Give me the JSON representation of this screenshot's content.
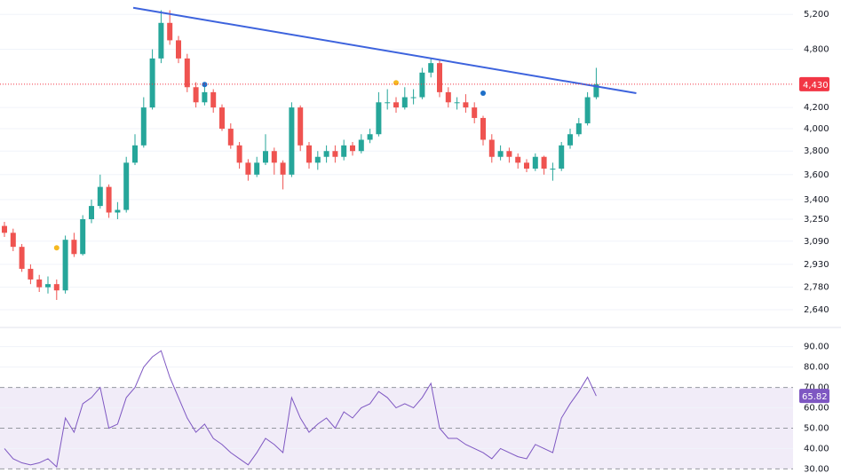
{
  "chart_data": [
    {
      "type": "candlestick",
      "log_scale": true,
      "grid": true,
      "up_color": "#26a69a",
      "down_color": "#ef5350",
      "open": [
        3200,
        3150,
        3050,
        2900,
        2830,
        2780,
        2800,
        2760,
        3100,
        3000,
        3250,
        3350,
        3500,
        3300,
        3320,
        3700,
        3850,
        4200,
        4700,
        5100,
        4900,
        4700,
        4400,
        4250,
        4350,
        4200,
        4000,
        3850,
        3700,
        3600,
        3700,
        3800,
        3700,
        3600,
        4200,
        3850,
        3700,
        3750,
        3800,
        3750,
        3850,
        3800,
        3900,
        3950,
        4250,
        4250,
        4200,
        4300,
        4300,
        4550,
        4650,
        4350,
        4250,
        4250,
        4200,
        4100,
        3900,
        3750,
        3800,
        3750,
        3700,
        3650,
        3750,
        3650,
        3650,
        3850,
        3950,
        4050,
        4300
      ],
      "high": [
        3230,
        3180,
        3070,
        2930,
        2860,
        2850,
        2830,
        3130,
        3150,
        3280,
        3400,
        3600,
        3520,
        3380,
        3750,
        3950,
        4300,
        4800,
        5250,
        5250,
        4950,
        4750,
        4450,
        4450,
        4380,
        4230,
        4050,
        3880,
        3730,
        3750,
        3950,
        3830,
        3720,
        4250,
        4220,
        3880,
        3800,
        3850,
        3850,
        3900,
        3880,
        3950,
        4000,
        4350,
        4380,
        4300,
        4400,
        4380,
        4600,
        4700,
        4680,
        4400,
        4300,
        4330,
        4250,
        4120,
        3950,
        3850,
        3830,
        3780,
        3730,
        3780,
        3760,
        3700,
        3880,
        4000,
        4100,
        4350,
        4600
      ],
      "low": [
        3120,
        3020,
        2880,
        2800,
        2750,
        2740,
        2700,
        2740,
        2980,
        2990,
        3220,
        3330,
        3260,
        3250,
        3300,
        3680,
        3830,
        4180,
        4650,
        4850,
        4650,
        4350,
        4200,
        4220,
        4150,
        3980,
        3820,
        3650,
        3550,
        3580,
        3680,
        3600,
        3480,
        3580,
        3800,
        3650,
        3640,
        3700,
        3700,
        3720,
        3760,
        3780,
        3870,
        3930,
        4180,
        4150,
        4180,
        4230,
        4280,
        4500,
        4300,
        4200,
        4180,
        4150,
        4050,
        3850,
        3700,
        3720,
        3700,
        3650,
        3620,
        3630,
        3600,
        3550,
        3630,
        3820,
        3930,
        4030,
        4280
      ],
      "close": [
        3150,
        3050,
        2900,
        2830,
        2780,
        2800,
        2760,
        3100,
        3000,
        3250,
        3350,
        3500,
        3300,
        3320,
        3700,
        3850,
        4200,
        4700,
        5100,
        4900,
        4700,
        4400,
        4250,
        4350,
        4200,
        4000,
        3850,
        3700,
        3600,
        3700,
        3800,
        3700,
        3600,
        4200,
        3850,
        3700,
        3750,
        3800,
        3750,
        3850,
        3800,
        3900,
        3950,
        4250,
        4250,
        4200,
        4300,
        4300,
        4550,
        4650,
        4350,
        4250,
        4250,
        4200,
        4100,
        3900,
        3750,
        3800,
        3750,
        3700,
        3650,
        3750,
        3650,
        3650,
        3850,
        3950,
        4050,
        4300,
        4430
      ],
      "ylim": [
        2540,
        5375
      ],
      "yticks": [
        {
          "value": 2640,
          "label": "2,640"
        },
        {
          "value": 2780,
          "label": "2,780"
        },
        {
          "value": 2930,
          "label": "2,930"
        },
        {
          "value": 3090,
          "label": "3,090"
        },
        {
          "value": 3250,
          "label": "3,250"
        },
        {
          "value": 3400,
          "label": "3,400"
        },
        {
          "value": 3600,
          "label": "3,600"
        },
        {
          "value": 3800,
          "label": "3,800"
        },
        {
          "value": 4000,
          "label": "4,000"
        },
        {
          "value": 4200,
          "label": "4,200"
        },
        {
          "value": 4800,
          "label": "4,800"
        },
        {
          "value": 5200,
          "label": "5,200"
        }
      ],
      "last_price": {
        "value": 4430,
        "label": "4,430",
        "color": "#f23645"
      },
      "markers": [
        {
          "index": 6,
          "value": 3043,
          "color": "#f5b921"
        },
        {
          "index": 23,
          "value": 4427,
          "color": "#1e6fc8"
        },
        {
          "index": 45,
          "value": 4445,
          "color": "#f5b921"
        },
        {
          "index": 55,
          "value": 4340,
          "color": "#1e6fc8"
        }
      ],
      "trendline": {
        "x": [
          14.8,
          72.6
        ],
        "y": [
          5280,
          4340
        ],
        "color": "#3d63dd"
      }
    },
    {
      "type": "line",
      "color": "#7e57c2",
      "values": [
        40,
        35,
        33,
        32,
        33,
        35,
        31,
        55,
        48,
        62,
        65,
        70,
        50,
        52,
        65,
        70,
        80,
        85,
        88,
        75,
        65,
        55,
        48,
        52,
        45,
        42,
        38,
        35,
        32,
        38,
        45,
        42,
        38,
        65,
        55,
        48,
        52,
        55,
        50,
        58,
        55,
        60,
        62,
        68,
        65,
        60,
        62,
        60,
        65,
        72,
        50,
        45,
        45,
        42,
        40,
        38,
        35,
        40,
        38,
        36,
        35,
        42,
        40,
        38,
        55,
        62,
        68,
        75,
        65.82
      ],
      "ylim": [
        28,
        99
      ],
      "yticks": [
        {
          "value": 30,
          "label": "30.00"
        },
        {
          "value": 40,
          "label": "40.00"
        },
        {
          "value": 50,
          "label": "50.00"
        },
        {
          "value": 60,
          "label": "60.00"
        },
        {
          "value": 70,
          "label": "70.00"
        },
        {
          "value": 80,
          "label": "80.00"
        },
        {
          "value": 90,
          "label": "90.00"
        }
      ],
      "band": [
        30,
        70
      ],
      "last_value": 65.82
    }
  ]
}
